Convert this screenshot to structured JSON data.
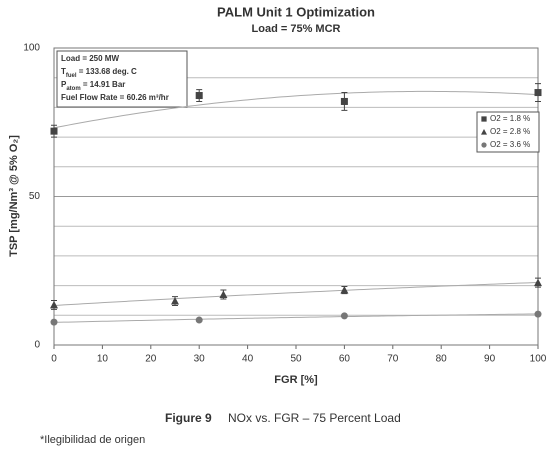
{
  "chart_data": {
    "type": "scatter",
    "title": "PALM Unit 1 Optimization",
    "subtitle": "Load = 75% MCR",
    "x_label": "FGR [%]",
    "y_label": "TSP [mg/Nm³ @ 5% O₂]",
    "xlim": [
      0,
      100
    ],
    "xticks": [
      0,
      10,
      20,
      30,
      40,
      50,
      60,
      70,
      80,
      90,
      100
    ],
    "ylim": [
      0,
      100
    ],
    "yticks": [
      0,
      50,
      100
    ],
    "ygrid": [
      10,
      20,
      30,
      40,
      60,
      70,
      80,
      90
    ],
    "legend": "right",
    "trend_lines": true,
    "annotations": [
      {
        "base": "Load = 250 MW"
      },
      {
        "base": "T",
        "sub": "fuel",
        "rest": " = 133.68 deg. C"
      },
      {
        "base": "P",
        "sub": "atom",
        "rest": " = 14.91 Bar"
      },
      {
        "base": "Fuel Flow Rate = 60.26 m³/hr"
      }
    ],
    "series": [
      {
        "name": "O2 = 1.8 %",
        "color": "#444444",
        "marker": "square",
        "x": [
          0,
          30,
          60,
          100
        ],
        "values": [
          72,
          84,
          82,
          85
        ],
        "errors": [
          2,
          2,
          3,
          3
        ]
      },
      {
        "name": "O2 = 2.8 %",
        "color": "#444444",
        "marker": "triangle",
        "x": [
          0,
          25,
          35,
          60,
          100
        ],
        "values": [
          13.5,
          14.8,
          17,
          18.5,
          21
        ],
        "errors": [
          1.5,
          1.5,
          1.5,
          1.2,
          1.5
        ]
      },
      {
        "name": "O2 = 3.6 %",
        "color": "#777777",
        "marker": "circle",
        "x": [
          0,
          30,
          60,
          100
        ],
        "values": [
          7.7,
          8.4,
          9.8,
          10.4
        ]
      }
    ]
  },
  "caption": {
    "label": "Figure 9",
    "text": "NOx vs. FGR – 75 Percent Load"
  },
  "footnote": "*Ilegibilidad de origen"
}
